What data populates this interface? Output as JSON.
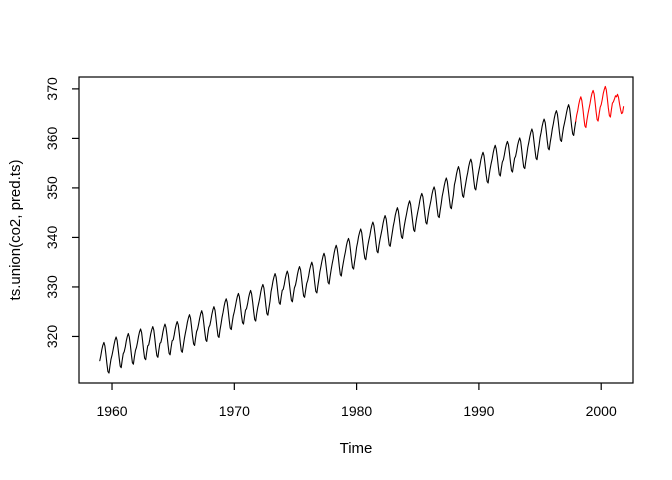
{
  "figure": {
    "kind": "R base-graphics time series plot",
    "background_color": "#ffffff",
    "frame_color": "#000000"
  },
  "chart_data": {
    "type": "line",
    "title": "",
    "xlabel": "Time",
    "ylabel": "ts.union(co2, pred.ts)",
    "xlim": [
      1957.3,
      2002.6
    ],
    "ylim": [
      310.6,
      372.4
    ],
    "x_ticks": [
      1960,
      1970,
      1980,
      1990,
      2000
    ],
    "y_ticks": [
      320,
      330,
      340,
      350,
      360,
      370
    ],
    "grid": false,
    "legend": "none",
    "sampling": "monthly",
    "seasonal_monthly_offsets": [
      -0.7,
      0.3,
      1.5,
      2.4,
      3.0,
      2.3,
      0.6,
      -1.3,
      -2.9,
      -3.2,
      -1.7,
      -0.4
    ],
    "series": [
      {
        "name": "co2",
        "color": "#000000",
        "start": 1959,
        "annual_means": [
          315.8,
          316.9,
          317.6,
          318.5,
          319.0,
          319.5,
          320.0,
          321.4,
          322.2,
          323.0,
          324.6,
          325.7,
          326.3,
          327.5,
          329.7,
          330.2,
          331.1,
          332.0,
          333.8,
          335.4,
          336.8,
          338.7,
          340.1,
          341.4,
          343.0,
          344.4,
          345.9,
          347.2,
          349.0,
          351.3,
          352.8,
          354.2,
          355.6,
          356.4,
          357.1,
          358.9,
          360.9,
          362.6,
          363.8
        ]
      },
      {
        "name": "pred.ts",
        "color": "#ff0000",
        "start": 1998,
        "connect_to_previous": true,
        "values": [
          364.7,
          365.7,
          366.9,
          367.8,
          368.4,
          367.7,
          366.0,
          364.1,
          362.5,
          362.2,
          363.7,
          365.0,
          366.0,
          367.0,
          368.2,
          369.1,
          369.7,
          369.0,
          367.3,
          365.4,
          363.8,
          363.5,
          365.0,
          366.3,
          366.8,
          367.8,
          369.0,
          369.9,
          370.5,
          369.8,
          368.1,
          366.2,
          364.6,
          364.3,
          365.8,
          367.1,
          367.4,
          368.0,
          368.6,
          368.4,
          368.9,
          368.3,
          367.0,
          365.8,
          365.0,
          365.2,
          366.4
        ]
      }
    ]
  }
}
